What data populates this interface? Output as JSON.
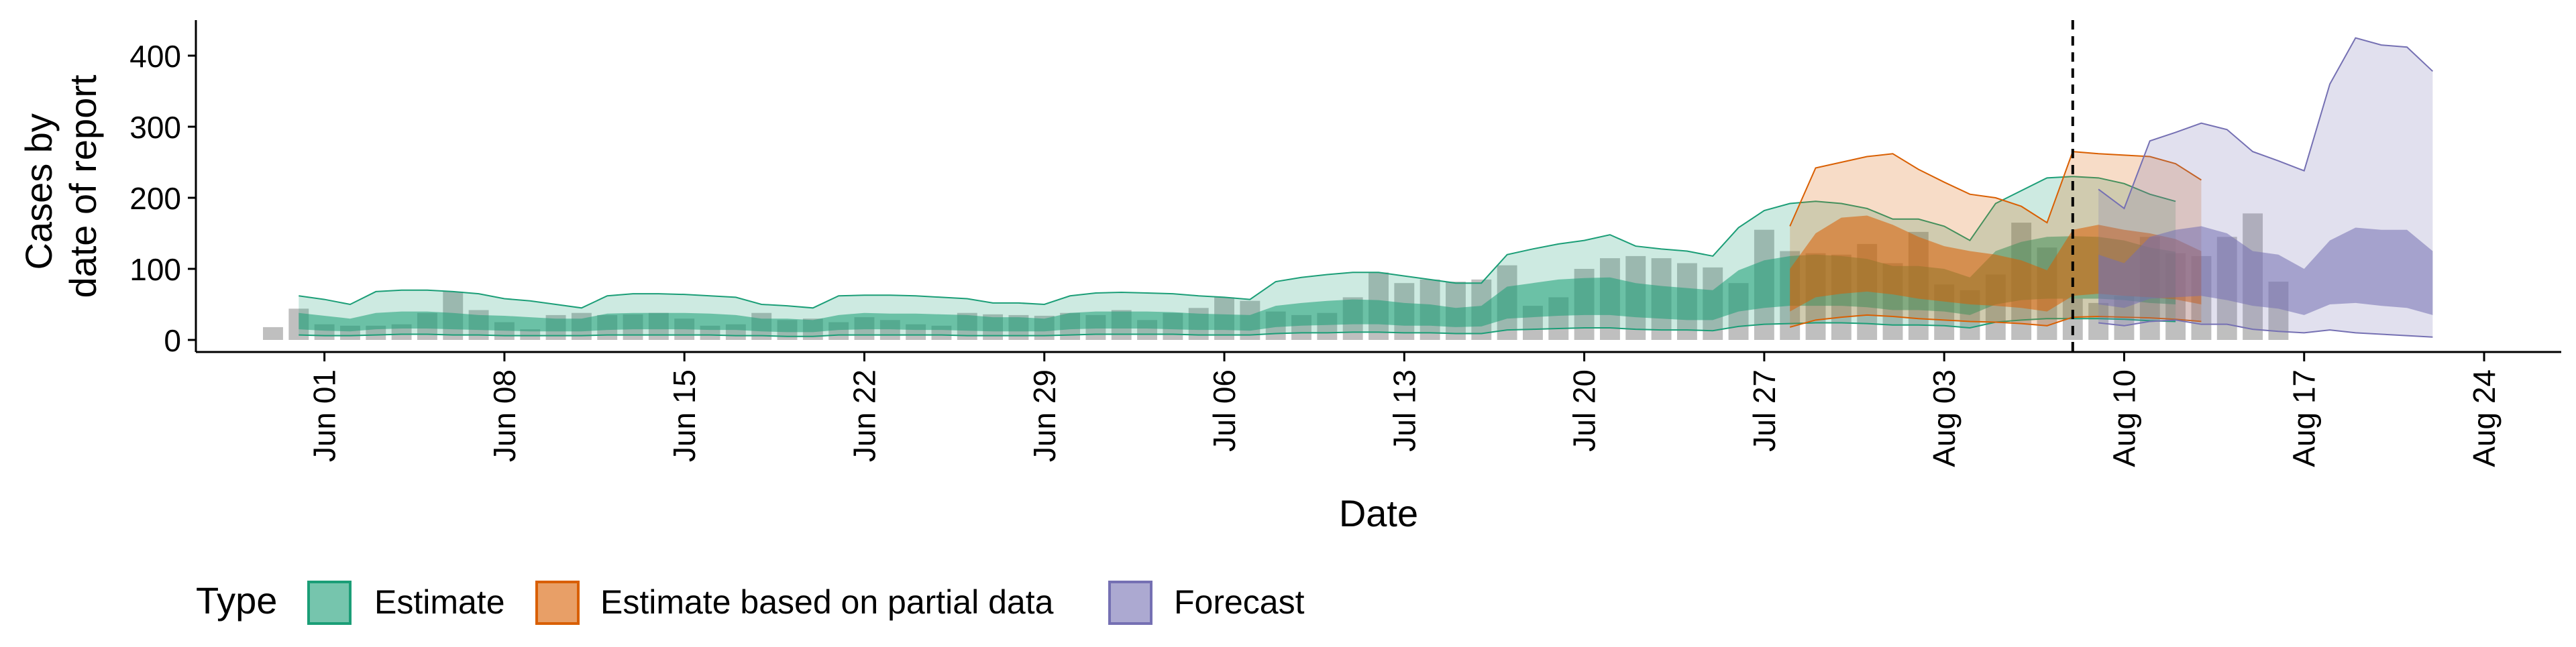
{
  "chart_data": {
    "type": "area",
    "xlabel": "Date",
    "ylabel_lines": [
      "Cases by",
      "date of report"
    ],
    "ylim": [
      0,
      450
    ],
    "yticks": [
      0,
      100,
      200,
      300,
      400
    ],
    "x_range": [
      "2020-05-27",
      "2020-08-27"
    ],
    "xticks": [
      {
        "date": "2020-06-01",
        "label": "Jun 01"
      },
      {
        "date": "2020-06-08",
        "label": "Jun 08"
      },
      {
        "date": "2020-06-15",
        "label": "Jun 15"
      },
      {
        "date": "2020-06-22",
        "label": "Jun 22"
      },
      {
        "date": "2020-06-29",
        "label": "Jun 29"
      },
      {
        "date": "2020-07-06",
        "label": "Jul 06"
      },
      {
        "date": "2020-07-13",
        "label": "Jul 13"
      },
      {
        "date": "2020-07-20",
        "label": "Jul 20"
      },
      {
        "date": "2020-07-27",
        "label": "Jul 27"
      },
      {
        "date": "2020-08-03",
        "label": "Aug 03"
      },
      {
        "date": "2020-08-10",
        "label": "Aug 10"
      },
      {
        "date": "2020-08-17",
        "label": "Aug 17"
      },
      {
        "date": "2020-08-24",
        "label": "Aug 24"
      }
    ],
    "forecast_line_date": "2020-08-08",
    "legend": {
      "title": "Type",
      "position": "bottom",
      "items": [
        {
          "label": "Estimate",
          "color": "#1b9e77"
        },
        {
          "label": "Estimate based on partial data",
          "color": "#d95f02"
        },
        {
          "label": "Forecast",
          "color": "#7570b3"
        }
      ]
    },
    "observed": {
      "color": "#808080",
      "start_date": "2020-05-30",
      "values": [
        18,
        44,
        22,
        20,
        20,
        22,
        38,
        68,
        42,
        25,
        15,
        35,
        38,
        35,
        36,
        38,
        30,
        20,
        22,
        38,
        28,
        30,
        25,
        32,
        28,
        22,
        20,
        38,
        36,
        35,
        34,
        38,
        35,
        42,
        28,
        38,
        45,
        60,
        55,
        40,
        35,
        38,
        60,
        95,
        80,
        85,
        82,
        85,
        105,
        48,
        60,
        100,
        115,
        118,
        115,
        108,
        102,
        80,
        155,
        125,
        122,
        120,
        135,
        108,
        152,
        78,
        70,
        92,
        165,
        130,
        58,
        52,
        62,
        145,
        122,
        118,
        145,
        178,
        82
      ]
    },
    "series": [
      {
        "name": "Estimate",
        "color": "#1b9e77",
        "start_date": "2020-05-31",
        "outer_upper": [
          62,
          57,
          50,
          68,
          70,
          70,
          68,
          65,
          58,
          55,
          50,
          45,
          62,
          65,
          65,
          64,
          62,
          60,
          50,
          48,
          45,
          62,
          63,
          63,
          62,
          60,
          58,
          52,
          52,
          50,
          62,
          66,
          67,
          66,
          65,
          62,
          60,
          57,
          82,
          88,
          92,
          95,
          95,
          90,
          85,
          80,
          80,
          120,
          128,
          135,
          140,
          148,
          132,
          128,
          125,
          118,
          158,
          182,
          192,
          195,
          192,
          185,
          170,
          170,
          160,
          140,
          192,
          210,
          228,
          230,
          228,
          220,
          205,
          195
        ],
        "inner_upper": [
          38,
          34,
          30,
          38,
          40,
          40,
          38,
          35,
          34,
          32,
          30,
          30,
          37,
          38,
          38,
          38,
          37,
          35,
          30,
          30,
          28,
          35,
          38,
          37,
          37,
          36,
          35,
          32,
          32,
          30,
          38,
          40,
          40,
          40,
          39,
          37,
          36,
          35,
          48,
          52,
          55,
          57,
          56,
          52,
          50,
          45,
          48,
          75,
          80,
          85,
          87,
          88,
          80,
          76,
          73,
          70,
          98,
          112,
          118,
          120,
          118,
          114,
          104,
          104,
          100,
          88,
          125,
          138,
          145,
          146,
          145,
          140,
          130,
          124
        ],
        "inner_lower": [
          15,
          13,
          12,
          15,
          16,
          16,
          15,
          14,
          13,
          12,
          12,
          12,
          14,
          15,
          15,
          15,
          14,
          14,
          12,
          11,
          11,
          14,
          15,
          15,
          14,
          14,
          13,
          12,
          12,
          12,
          15,
          16,
          16,
          16,
          15,
          14,
          14,
          13,
          18,
          20,
          21,
          22,
          22,
          20,
          20,
          18,
          19,
          30,
          32,
          34,
          35,
          35,
          32,
          30,
          28,
          28,
          40,
          45,
          48,
          48,
          48,
          46,
          42,
          42,
          40,
          35,
          50,
          56,
          58,
          58,
          58,
          56,
          52,
          50
        ],
        "outer_lower": [
          7,
          6,
          6,
          7,
          8,
          8,
          7,
          7,
          6,
          6,
          6,
          6,
          7,
          7,
          7,
          7,
          7,
          6,
          6,
          5,
          5,
          7,
          7,
          7,
          7,
          7,
          6,
          6,
          6,
          6,
          7,
          8,
          8,
          8,
          8,
          7,
          7,
          7,
          9,
          10,
          10,
          11,
          11,
          10,
          10,
          9,
          9,
          14,
          15,
          16,
          17,
          17,
          15,
          14,
          14,
          13,
          19,
          22,
          23,
          24,
          24,
          23,
          21,
          21,
          20,
          17,
          25,
          28,
          30,
          30,
          30,
          29,
          27,
          26
        ]
      },
      {
        "name": "Estimate based on partial data",
        "color": "#d95f02",
        "start_date": "2020-07-28",
        "outer_upper": [
          160,
          242,
          250,
          258,
          262,
          240,
          222,
          205,
          200,
          188,
          165,
          265,
          262,
          260,
          258,
          248,
          225
        ],
        "inner_upper": [
          100,
          150,
          172,
          175,
          162,
          145,
          132,
          125,
          120,
          112,
          98,
          155,
          162,
          155,
          150,
          142,
          125
        ],
        "inner_lower": [
          40,
          60,
          65,
          68,
          64,
          58,
          54,
          50,
          48,
          45,
          40,
          62,
          65,
          62,
          60,
          57,
          50
        ],
        "outer_lower": [
          18,
          28,
          32,
          35,
          33,
          30,
          28,
          26,
          25,
          23,
          20,
          32,
          33,
          32,
          31,
          29,
          26
        ]
      },
      {
        "name": "Forecast",
        "color": "#7570b3",
        "start_date": "2020-08-09",
        "outer_upper": [
          212,
          185,
          280,
          292,
          305,
          296,
          265,
          252,
          238,
          360,
          425,
          415,
          412,
          378
        ],
        "inner_upper": [
          120,
          108,
          145,
          155,
          160,
          150,
          125,
          120,
          100,
          140,
          158,
          155,
          155,
          125
        ],
        "inner_lower": [
          50,
          45,
          58,
          60,
          62,
          56,
          48,
          44,
          35,
          50,
          52,
          48,
          45,
          35
        ],
        "outer_lower": [
          24,
          20,
          26,
          28,
          22,
          22,
          15,
          12,
          10,
          14,
          10,
          8,
          6,
          4
        ]
      }
    ]
  }
}
